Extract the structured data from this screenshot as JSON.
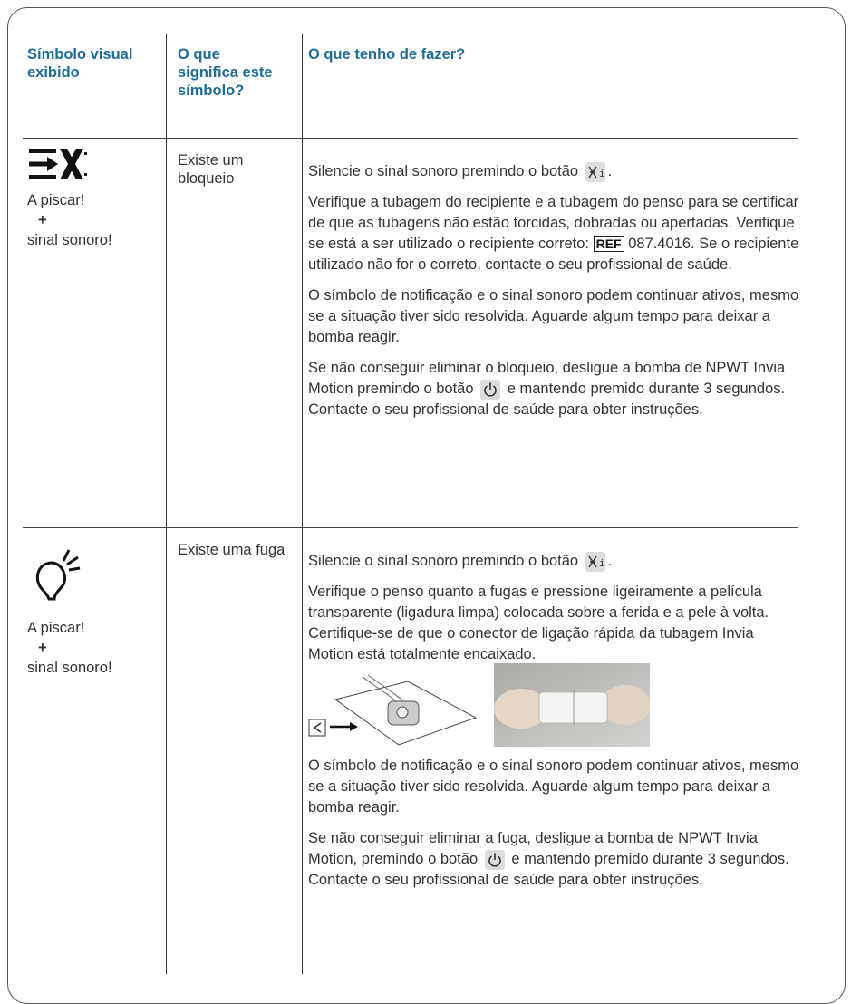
{
  "table": {
    "headers": [
      "Símbolo visual exibido",
      "O que significa este símbolo?",
      "O que tenho de fazer?"
    ],
    "rows": [
      {
        "status": "A piscar!",
        "plus": "+",
        "sound": "sinal sonoro!",
        "meaning": "Existe um bloqueio",
        "actions": [
          [
            "Silencie o sinal sonoro premindo o botão",
            "."
          ],
          [
            "Verifique a tubagem do recipiente e a tubagem do penso para se certificar de que as tubagens não estão torcidas, dobradas ou apertadas. Verifique se está a ser utilizado o recipiente correto:",
            "REF",
            "087.4016. Se o recipiente utilizado não for o correto, contacte o seu profissional de saúde."
          ],
          [
            "O símbolo de notificação e o sinal sonoro podem continuar ativos, mesmo se a situação tiver sido resolvida. Aguarde algum tempo para deixar a bomba reagir."
          ],
          [
            "Se não conseguir eliminar o bloqueio, desligue a bomba de NPWT Invia Motion premindo o botão",
            "e mantendo premido durante 3 segundos. Contacte o seu profissional de saúde para obter instruções."
          ]
        ]
      },
      {
        "status": "A piscar!",
        "plus": "+",
        "sound": "sinal sonoro!",
        "meaning": "Existe uma fuga",
        "actions": [
          [
            "Silencie o sinal sonoro premindo o botão",
            "."
          ],
          [
            "Verifique o penso quanto a fugas e pressione ligeiramente a película transparente (ligadura limpa) colocada sobre a ferida e a pele à volta. Certifique-se de que o conector de ligação rápida da tubagem Invia Motion está totalmente encaixado."
          ],
          [
            "O símbolo de notificação e o sinal sonoro podem continuar ativos, mesmo se a situação tiver sido resolvida. Aguarde algum tempo para deixar a bomba reagir."
          ],
          [
            "Se não conseguir eliminar a fuga, desligue a bomba de NPWT Invia Motion, premindo o botão",
            "e mantendo premido durante 3 segundos. Contacte o seu profissional de saúde para obter instruções."
          ]
        ]
      }
    ]
  }
}
